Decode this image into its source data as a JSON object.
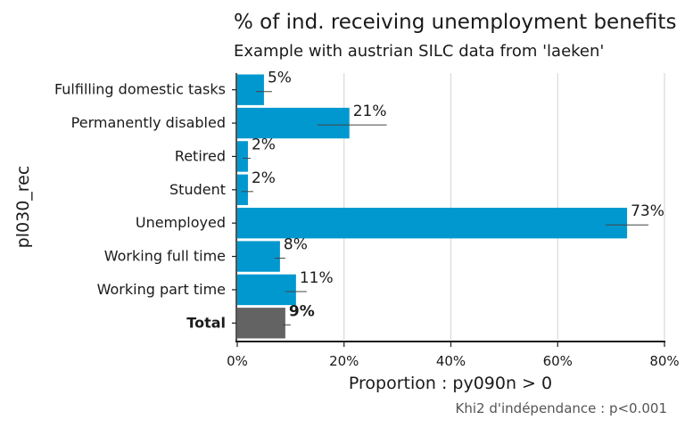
{
  "chart_data": {
    "type": "bar",
    "orientation": "horizontal",
    "title": "% of ind. receiving unemployment benefits",
    "subtitle": "Example with austrian SILC data from 'laeken'",
    "xlabel": "Proportion : py090n > 0",
    "ylabel": "pl030_rec",
    "caption": "Khi2 d'indépendance : p<0.001",
    "xlim": [
      0,
      80
    ],
    "xticks": [
      0,
      20,
      40,
      60,
      80
    ],
    "xtick_labels": [
      "0%",
      "20%",
      "40%",
      "60%",
      "80%"
    ],
    "grid": "vertical major gridlines",
    "categories": [
      "Fulfilling domestic tasks",
      "Permanently disabled",
      "Retired",
      "Student",
      "Unemployed",
      "Working full time",
      "Working part time",
      "Total"
    ],
    "values": [
      5,
      21,
      2,
      2,
      73,
      8,
      11,
      9
    ],
    "value_labels": [
      "5%",
      "21%",
      "2%",
      "2%",
      "73%",
      "8%",
      "11%",
      "9%"
    ],
    "error_low": [
      3.5,
      15,
      1,
      0.8,
      69,
      7,
      9,
      8.5
    ],
    "error_high": [
      6.5,
      28,
      2.5,
      3,
      77,
      9,
      13,
      10
    ],
    "colors": {
      "bar": "#0198cf",
      "total_bar": "#636363",
      "grid": "#d9d9d9",
      "errorbar": "#444444"
    }
  }
}
